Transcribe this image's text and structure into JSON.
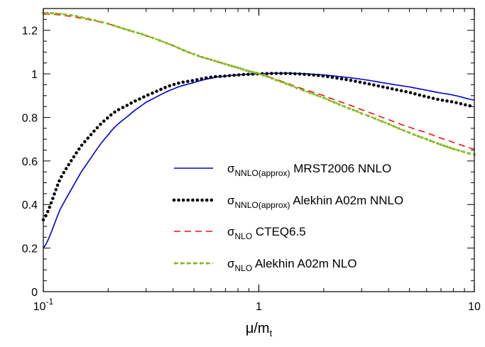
{
  "chart_data": {
    "type": "line",
    "x_scale": "log",
    "xlim": [
      0.1,
      10
    ],
    "ylim": [
      0,
      1.3
    ],
    "xlabel": {
      "main": "μ/m",
      "sub": "t"
    },
    "ylabel": "",
    "x_ticks": [
      {
        "value": 0.1,
        "base": "10",
        "exp": "-1"
      },
      {
        "value": 1,
        "base": "1",
        "exp": ""
      },
      {
        "value": 10,
        "base": "10",
        "exp": ""
      }
    ],
    "y_ticks": [
      0,
      0.2,
      0.4,
      0.6,
      0.8,
      1,
      1.2
    ],
    "y_tick_labels": [
      "0",
      "0.2",
      "0.4",
      "0.6",
      "0.8",
      "1",
      "1.2"
    ],
    "legend_position": "right-center",
    "series": [
      {
        "name": "σNNLO(approx) MRST2006 NNLO",
        "label_main": "σ",
        "label_sub": "NNLO(approx)",
        "label_rest": " MRST2006 NNLO",
        "color": "#0000cc",
        "style": "solid",
        "x": [
          0.1,
          0.12,
          0.15,
          0.2,
          0.25,
          0.3,
          0.4,
          0.5,
          0.6,
          0.7,
          0.8,
          0.9,
          1.0,
          1.2,
          1.5,
          2,
          2.5,
          3,
          4,
          5,
          6,
          7,
          8,
          10
        ],
        "y": [
          0.2,
          0.38,
          0.55,
          0.72,
          0.81,
          0.87,
          0.93,
          0.96,
          0.98,
          0.99,
          0.995,
          0.999,
          1.0,
          1.003,
          1.002,
          0.995,
          0.985,
          0.975,
          0.955,
          0.94,
          0.925,
          0.912,
          0.902,
          0.88
        ]
      },
      {
        "name": "σNNLO(approx) Alekhin A02m NNLO",
        "label_main": "σ",
        "label_sub": "NNLO(approx)",
        "label_rest": " Alekhin A02m NNLO",
        "color": "#000000",
        "style": "dotted",
        "x": [
          0.1,
          0.12,
          0.15,
          0.2,
          0.25,
          0.3,
          0.4,
          0.5,
          0.6,
          0.7,
          0.8,
          0.9,
          1.0,
          1.2,
          1.5,
          2,
          2.5,
          3,
          4,
          5,
          6,
          7,
          8,
          10
        ],
        "y": [
          0.33,
          0.52,
          0.67,
          0.8,
          0.86,
          0.9,
          0.95,
          0.97,
          0.985,
          0.99,
          0.995,
          0.998,
          1.0,
          1.002,
          1.0,
          0.99,
          0.975,
          0.96,
          0.935,
          0.915,
          0.895,
          0.88,
          0.87,
          0.85
        ]
      },
      {
        "name": "σNLO CTEQ6.5",
        "label_main": "σ",
        "label_sub": "NLO",
        "label_rest": " CTEQ6.5",
        "color": "#ee1111",
        "style": "dashed",
        "x": [
          0.1,
          0.12,
          0.15,
          0.2,
          0.25,
          0.3,
          0.4,
          0.5,
          0.6,
          0.7,
          0.8,
          0.9,
          1.0,
          1.2,
          1.5,
          2,
          2.5,
          3,
          4,
          5,
          6,
          7,
          8,
          10
        ],
        "y": [
          1.275,
          1.27,
          1.255,
          1.23,
          1.2,
          1.175,
          1.13,
          1.09,
          1.065,
          1.045,
          1.028,
          1.012,
          1.0,
          0.975,
          0.94,
          0.9,
          0.865,
          0.835,
          0.79,
          0.755,
          0.73,
          0.705,
          0.685,
          0.655
        ]
      },
      {
        "name": "σNLO Alekhin A02m NLO",
        "label_main": "σ",
        "label_sub": "NLO",
        "label_rest": " Alekhin A02m NLO",
        "color": "#88bb22",
        "style": "dash-dot-markers",
        "x": [
          0.1,
          0.12,
          0.15,
          0.2,
          0.25,
          0.3,
          0.4,
          0.5,
          0.6,
          0.7,
          0.8,
          0.9,
          1.0,
          1.2,
          1.5,
          2,
          2.5,
          3,
          4,
          5,
          6,
          7,
          8,
          10
        ],
        "y": [
          1.28,
          1.275,
          1.26,
          1.23,
          1.2,
          1.175,
          1.13,
          1.09,
          1.065,
          1.045,
          1.028,
          1.012,
          1.0,
          0.972,
          0.935,
          0.89,
          0.85,
          0.818,
          0.77,
          0.73,
          0.7,
          0.675,
          0.655,
          0.63
        ]
      }
    ]
  }
}
